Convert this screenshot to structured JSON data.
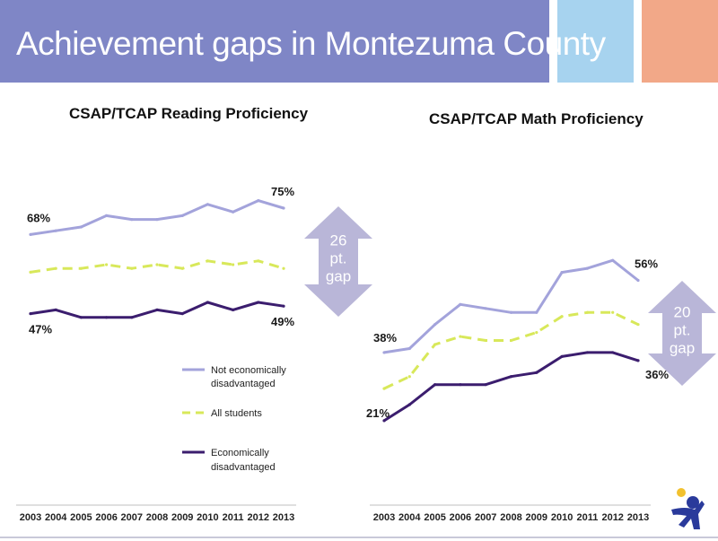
{
  "slide": {
    "title": "Achievement gaps in Montezuma County",
    "colors": {
      "header_band": "#7f86c6",
      "accent_blue": "#a7d3ef",
      "accent_salmon": "#f2a888",
      "arrow": "#b9b6d8",
      "not_disadvantaged": "#a3a3db",
      "all_students": "#d8e85a",
      "disadvantaged": "#3b1d6e"
    }
  },
  "legend": {
    "not_disadvantaged_line1": "Not economically",
    "not_disadvantaged_line2": "disadvantaged",
    "all_students": "All students",
    "disadvantaged_line1": "Economically",
    "disadvantaged_line2": "disadvantaged"
  },
  "chart_data": [
    {
      "type": "line",
      "title": "CSAP/TCAP Reading Proficiency",
      "categories": [
        "2003",
        "2004",
        "2005",
        "2006",
        "2007",
        "2008",
        "2009",
        "2010",
        "2011",
        "2012",
        "2013"
      ],
      "ylim": [
        35,
        85
      ],
      "series": [
        {
          "name": "Not economically disadvantaged",
          "values": [
            68,
            69,
            70,
            73,
            72,
            72,
            73,
            76,
            74,
            77,
            75
          ]
        },
        {
          "name": "All students",
          "values": [
            58,
            59,
            59,
            60,
            59,
            60,
            59,
            61,
            60,
            61,
            59
          ]
        },
        {
          "name": "Economically disadvantaged",
          "values": [
            47,
            48,
            46,
            46,
            46,
            48,
            47,
            50,
            48,
            50,
            49
          ]
        }
      ],
      "point_labels": {
        "top_start": "68%",
        "top_end": "75%",
        "bottom_start": "47%",
        "bottom_end": "49%"
      },
      "gap_label": [
        "26",
        "pt.",
        "gap"
      ],
      "grid": false,
      "legend_position": "bottom-right"
    },
    {
      "type": "line",
      "title": "CSAP/TCAP Math Proficiency",
      "categories": [
        "2003",
        "2004",
        "2005",
        "2006",
        "2007",
        "2008",
        "2009",
        "2010",
        "2011",
        "2012",
        "2013"
      ],
      "ylim": [
        10,
        70
      ],
      "series": [
        {
          "name": "Not economically disadvantaged",
          "values": [
            38,
            39,
            45,
            50,
            49,
            48,
            48,
            58,
            59,
            61,
            56
          ]
        },
        {
          "name": "All students",
          "values": [
            29,
            32,
            40,
            42,
            41,
            41,
            43,
            47,
            48,
            48,
            45
          ]
        },
        {
          "name": "Economically disadvantaged",
          "values": [
            21,
            25,
            30,
            30,
            30,
            32,
            33,
            37,
            38,
            38,
            36
          ]
        }
      ],
      "point_labels": {
        "top_start": "38%",
        "top_end": "56%",
        "bottom_start": "21%",
        "bottom_end": "36%"
      },
      "gap_label": [
        "20",
        "pt.",
        "gap"
      ],
      "grid": false
    }
  ]
}
